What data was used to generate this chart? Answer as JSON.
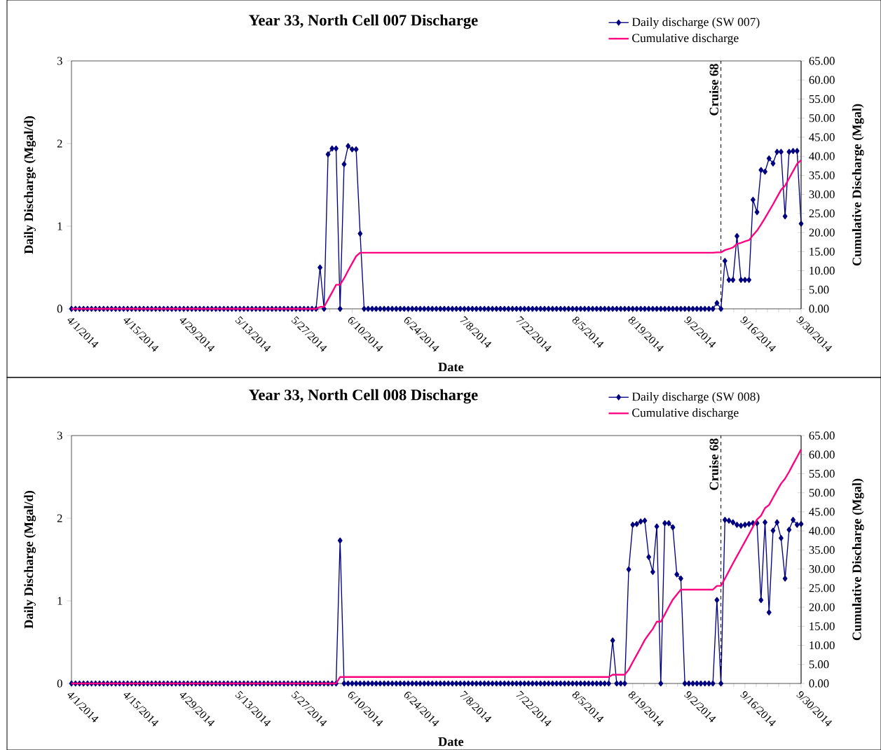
{
  "chart_data": [
    {
      "type": "line",
      "title": "Year 33, North Cell 007 Discharge",
      "xlabel": "Date",
      "ylabel": "Daily Discharge (Mgal/d)",
      "y2label": "Cumulative Discharge (Mgal)",
      "x": [
        "2014-04-01",
        "2014-04-02",
        "2014-04-03",
        "2014-04-04",
        "2014-04-05",
        "2014-04-06",
        "2014-04-07",
        "2014-04-08",
        "2014-04-09",
        "2014-04-10",
        "2014-04-11",
        "2014-04-12",
        "2014-04-13",
        "2014-04-14",
        "2014-04-15",
        "2014-04-16",
        "2014-04-17",
        "2014-04-18",
        "2014-04-19",
        "2014-04-20",
        "2014-04-21",
        "2014-04-22",
        "2014-04-23",
        "2014-04-24",
        "2014-04-25",
        "2014-04-26",
        "2014-04-27",
        "2014-04-28",
        "2014-04-29",
        "2014-04-30",
        "2014-05-01",
        "2014-05-02",
        "2014-05-03",
        "2014-05-04",
        "2014-05-05",
        "2014-05-06",
        "2014-05-07",
        "2014-05-08",
        "2014-05-09",
        "2014-05-10",
        "2014-05-11",
        "2014-05-12",
        "2014-05-13",
        "2014-05-14",
        "2014-05-15",
        "2014-05-16",
        "2014-05-17",
        "2014-05-18",
        "2014-05-19",
        "2014-05-20",
        "2014-05-21",
        "2014-05-22",
        "2014-05-23",
        "2014-05-24",
        "2014-05-25",
        "2014-05-26",
        "2014-05-27",
        "2014-05-28",
        "2014-05-29",
        "2014-05-30",
        "2014-05-31",
        "2014-06-01",
        "2014-06-02",
        "2014-06-03",
        "2014-06-04",
        "2014-06-05",
        "2014-06-06",
        "2014-06-07",
        "2014-06-08",
        "2014-06-09",
        "2014-06-10",
        "2014-06-11",
        "2014-06-12",
        "2014-06-13",
        "2014-06-14",
        "2014-06-15",
        "2014-06-16",
        "2014-06-17",
        "2014-06-18",
        "2014-06-19",
        "2014-06-20",
        "2014-06-21",
        "2014-06-22",
        "2014-06-23",
        "2014-06-24",
        "2014-06-25",
        "2014-06-26",
        "2014-06-27",
        "2014-06-28",
        "2014-06-29",
        "2014-06-30",
        "2014-07-01",
        "2014-07-02",
        "2014-07-03",
        "2014-07-04",
        "2014-07-05",
        "2014-07-06",
        "2014-07-07",
        "2014-07-08",
        "2014-07-09",
        "2014-07-10",
        "2014-07-11",
        "2014-07-12",
        "2014-07-13",
        "2014-07-14",
        "2014-07-15",
        "2014-07-16",
        "2014-07-17",
        "2014-07-18",
        "2014-07-19",
        "2014-07-20",
        "2014-07-21",
        "2014-07-22",
        "2014-07-23",
        "2014-07-24",
        "2014-07-25",
        "2014-07-26",
        "2014-07-27",
        "2014-07-28",
        "2014-07-29",
        "2014-07-30",
        "2014-07-31",
        "2014-08-01",
        "2014-08-02",
        "2014-08-03",
        "2014-08-04",
        "2014-08-05",
        "2014-08-06",
        "2014-08-07",
        "2014-08-08",
        "2014-08-09",
        "2014-08-10",
        "2014-08-11",
        "2014-08-12",
        "2014-08-13",
        "2014-08-14",
        "2014-08-15",
        "2014-08-16",
        "2014-08-17",
        "2014-08-18",
        "2014-08-19",
        "2014-08-20",
        "2014-08-21",
        "2014-08-22",
        "2014-08-23",
        "2014-08-24",
        "2014-08-25",
        "2014-08-26",
        "2014-08-27",
        "2014-08-28",
        "2014-08-29",
        "2014-08-30",
        "2014-08-31",
        "2014-09-01",
        "2014-09-02",
        "2014-09-03",
        "2014-09-04",
        "2014-09-05",
        "2014-09-06",
        "2014-09-07",
        "2014-09-08",
        "2014-09-09",
        "2014-09-10",
        "2014-09-11",
        "2014-09-12",
        "2014-09-13",
        "2014-09-14",
        "2014-09-15",
        "2014-09-16",
        "2014-09-17",
        "2014-09-18",
        "2014-09-19",
        "2014-09-20",
        "2014-09-21",
        "2014-09-22",
        "2014-09-23",
        "2014-09-24",
        "2014-09-25",
        "2014-09-26",
        "2014-09-27",
        "2014-09-28",
        "2014-09-29",
        "2014-09-30"
      ],
      "series": [
        {
          "name": "Daily discharge (SW 007)",
          "color": "#000080",
          "marker": "diamond",
          "values": [
            0,
            0,
            0,
            0,
            0,
            0,
            0,
            0,
            0,
            0,
            0,
            0,
            0,
            0,
            0,
            0,
            0,
            0,
            0,
            0,
            0,
            0,
            0,
            0,
            0,
            0,
            0,
            0,
            0,
            0,
            0,
            0,
            0,
            0,
            0,
            0,
            0,
            0,
            0,
            0,
            0,
            0,
            0,
            0,
            0,
            0,
            0,
            0,
            0,
            0,
            0,
            0,
            0,
            0,
            0,
            0,
            0,
            0,
            0,
            0,
            0,
            0,
            0.5,
            0,
            1.87,
            1.94,
            1.94,
            0,
            1.75,
            1.97,
            1.93,
            1.93,
            0.91,
            0,
            0,
            0,
            0,
            0,
            0,
            0,
            0,
            0,
            0,
            0,
            0,
            0,
            0,
            0,
            0,
            0,
            0,
            0,
            0,
            0,
            0,
            0,
            0,
            0,
            0,
            0,
            0,
            0,
            0,
            0,
            0,
            0,
            0,
            0,
            0,
            0,
            0,
            0,
            0,
            0,
            0,
            0,
            0,
            0,
            0,
            0,
            0,
            0,
            0,
            0,
            0,
            0,
            0,
            0,
            0,
            0,
            0,
            0,
            0,
            0,
            0,
            0,
            0,
            0,
            0,
            0,
            0,
            0,
            0,
            0,
            0,
            0,
            0,
            0,
            0,
            0,
            0,
            0,
            0,
            0,
            0,
            0,
            0,
            0,
            0,
            0,
            0,
            0.07,
            0,
            0.58,
            0.35,
            0.35,
            0.88,
            0.35,
            0.35,
            0.35,
            1.32,
            1.17,
            1.68,
            1.66,
            1.82,
            1.76,
            1.9,
            1.9,
            1.12,
            1.9,
            1.91,
            1.91,
            1.03
          ]
        },
        {
          "name": "Cumulative discharge",
          "color": "#ff0080",
          "marker": "none",
          "axis": "y2",
          "x": [
            "2014-04-01",
            "2014-06-01",
            "2014-06-02",
            "2014-06-03",
            "2014-06-04",
            "2014-06-05",
            "2014-06-06",
            "2014-06-07",
            "2014-06-08",
            "2014-06-09",
            "2014-06-10",
            "2014-06-11",
            "2014-06-12",
            "2014-09-08",
            "2014-09-09",
            "2014-09-10",
            "2014-09-11",
            "2014-09-12",
            "2014-09-13",
            "2014-09-14",
            "2014-09-15",
            "2014-09-16",
            "2014-09-17",
            "2014-09-18",
            "2014-09-19",
            "2014-09-20",
            "2014-09-21",
            "2014-09-22",
            "2014-09-23",
            "2014-09-24",
            "2014-09-25",
            "2014-09-26",
            "2014-09-27",
            "2014-09-28",
            "2014-09-29",
            "2014-09-30"
          ],
          "values": [
            0,
            0,
            0.5,
            0.5,
            2.4,
            4.3,
            6.3,
            6.3,
            8.0,
            10.0,
            11.9,
            13.8,
            14.7,
            14.7,
            14.8,
            14.8,
            15.4,
            15.7,
            16.1,
            17.0,
            17.3,
            17.7,
            18.0,
            19.3,
            20.5,
            22.1,
            23.8,
            25.6,
            27.4,
            29.3,
            31.2,
            32.3,
            34.2,
            36.1,
            38.0,
            39.0
          ]
        }
      ],
      "xlim": [
        "2014-04-01",
        "2014-09-30"
      ],
      "xticks": [
        {
          "value": "2014-04-01",
          "label": "4/1/2014"
        },
        {
          "value": "2014-04-15",
          "label": "4/15/2014"
        },
        {
          "value": "2014-04-29",
          "label": "4/29/2014"
        },
        {
          "value": "2014-05-13",
          "label": "5/13/2014"
        },
        {
          "value": "2014-05-27",
          "label": "5/27/2014"
        },
        {
          "value": "2014-06-10",
          "label": "6/10/2014"
        },
        {
          "value": "2014-06-24",
          "label": "6/24/2014"
        },
        {
          "value": "2014-07-08",
          "label": "7/8/2014"
        },
        {
          "value": "2014-07-22",
          "label": "7/22/2014"
        },
        {
          "value": "2014-08-05",
          "label": "8/5/2014"
        },
        {
          "value": "2014-08-19",
          "label": "8/19/2014"
        },
        {
          "value": "2014-09-02",
          "label": "9/2/2014"
        },
        {
          "value": "2014-09-16",
          "label": "9/16/2014"
        },
        {
          "value": "2014-09-30",
          "label": "9/30/2014"
        }
      ],
      "ylim": [
        0,
        3
      ],
      "yticks": [
        0,
        1,
        2,
        3
      ],
      "y2lim": [
        0,
        65
      ],
      "y2ticks": [
        {
          "value": 0,
          "label": "0.00"
        },
        {
          "value": 5,
          "label": "5.00"
        },
        {
          "value": 10,
          "label": "10.00"
        },
        {
          "value": 15,
          "label": "15.00"
        },
        {
          "value": 20,
          "label": "20.00"
        },
        {
          "value": 25,
          "label": "25.00"
        },
        {
          "value": 30,
          "label": "30.00"
        },
        {
          "value": 35,
          "label": "35.00"
        },
        {
          "value": 40,
          "label": "40.00"
        },
        {
          "value": 45,
          "label": "45.00"
        },
        {
          "value": 50,
          "label": "50.00"
        },
        {
          "value": 55,
          "label": "55.00"
        },
        {
          "value": 60,
          "label": "60.00"
        },
        {
          "value": 65,
          "label": "65.00"
        }
      ],
      "ref_lines": [
        {
          "axis": "x",
          "value": "2014-09-10",
          "label": "Cruise 68",
          "color": "#000000",
          "line_style": "dashed"
        }
      ],
      "legend": "top right"
    },
    {
      "type": "line",
      "title": "Year 33, North Cell 008 Discharge",
      "xlabel": "Date",
      "ylabel": "Daily Discharge (Mgal/d)",
      "y2label": "Cumulative Discharge (Mgal)",
      "x": [
        "2014-04-01",
        "2014-04-02",
        "2014-04-03",
        "2014-04-04",
        "2014-04-05",
        "2014-04-06",
        "2014-04-07",
        "2014-04-08",
        "2014-04-09",
        "2014-04-10",
        "2014-04-11",
        "2014-04-12",
        "2014-04-13",
        "2014-04-14",
        "2014-04-15",
        "2014-04-16",
        "2014-04-17",
        "2014-04-18",
        "2014-04-19",
        "2014-04-20",
        "2014-04-21",
        "2014-04-22",
        "2014-04-23",
        "2014-04-24",
        "2014-04-25",
        "2014-04-26",
        "2014-04-27",
        "2014-04-28",
        "2014-04-29",
        "2014-04-30",
        "2014-05-01",
        "2014-05-02",
        "2014-05-03",
        "2014-05-04",
        "2014-05-05",
        "2014-05-06",
        "2014-05-07",
        "2014-05-08",
        "2014-05-09",
        "2014-05-10",
        "2014-05-11",
        "2014-05-12",
        "2014-05-13",
        "2014-05-14",
        "2014-05-15",
        "2014-05-16",
        "2014-05-17",
        "2014-05-18",
        "2014-05-19",
        "2014-05-20",
        "2014-05-21",
        "2014-05-22",
        "2014-05-23",
        "2014-05-24",
        "2014-05-25",
        "2014-05-26",
        "2014-05-27",
        "2014-05-28",
        "2014-05-29",
        "2014-05-30",
        "2014-05-31",
        "2014-06-01",
        "2014-06-02",
        "2014-06-03",
        "2014-06-04",
        "2014-06-05",
        "2014-06-06",
        "2014-06-07",
        "2014-06-08",
        "2014-06-09",
        "2014-06-10",
        "2014-06-11",
        "2014-06-12",
        "2014-06-13",
        "2014-06-14",
        "2014-06-15",
        "2014-06-16",
        "2014-06-17",
        "2014-06-18",
        "2014-06-19",
        "2014-06-20",
        "2014-06-21",
        "2014-06-22",
        "2014-06-23",
        "2014-06-24",
        "2014-06-25",
        "2014-06-26",
        "2014-06-27",
        "2014-06-28",
        "2014-06-29",
        "2014-06-30",
        "2014-07-01",
        "2014-07-02",
        "2014-07-03",
        "2014-07-04",
        "2014-07-05",
        "2014-07-06",
        "2014-07-07",
        "2014-07-08",
        "2014-07-09",
        "2014-07-10",
        "2014-07-11",
        "2014-07-12",
        "2014-07-13",
        "2014-07-14",
        "2014-07-15",
        "2014-07-16",
        "2014-07-17",
        "2014-07-18",
        "2014-07-19",
        "2014-07-20",
        "2014-07-21",
        "2014-07-22",
        "2014-07-23",
        "2014-07-24",
        "2014-07-25",
        "2014-07-26",
        "2014-07-27",
        "2014-07-28",
        "2014-07-29",
        "2014-07-30",
        "2014-07-31",
        "2014-08-01",
        "2014-08-02",
        "2014-08-03",
        "2014-08-04",
        "2014-08-05",
        "2014-08-06",
        "2014-08-07",
        "2014-08-08",
        "2014-08-09",
        "2014-08-10",
        "2014-08-11",
        "2014-08-12",
        "2014-08-13",
        "2014-08-14",
        "2014-08-15",
        "2014-08-16",
        "2014-08-17",
        "2014-08-18",
        "2014-08-19",
        "2014-08-20",
        "2014-08-21",
        "2014-08-22",
        "2014-08-23",
        "2014-08-24",
        "2014-08-25",
        "2014-08-26",
        "2014-08-27",
        "2014-08-28",
        "2014-08-29",
        "2014-08-30",
        "2014-08-31",
        "2014-09-01",
        "2014-09-02",
        "2014-09-03",
        "2014-09-04",
        "2014-09-05",
        "2014-09-06",
        "2014-09-07",
        "2014-09-08",
        "2014-09-09",
        "2014-09-10",
        "2014-09-11",
        "2014-09-12",
        "2014-09-13",
        "2014-09-14",
        "2014-09-15",
        "2014-09-16",
        "2014-09-17",
        "2014-09-18",
        "2014-09-19",
        "2014-09-20",
        "2014-09-21",
        "2014-09-22",
        "2014-09-23",
        "2014-09-24",
        "2014-09-25",
        "2014-09-26",
        "2014-09-27",
        "2014-09-28",
        "2014-09-29",
        "2014-09-30"
      ],
      "series": [
        {
          "name": "Daily discharge (SW 008)",
          "color": "#000080",
          "marker": "diamond",
          "values": [
            0,
            0,
            0,
            0,
            0,
            0,
            0,
            0,
            0,
            0,
            0,
            0,
            0,
            0,
            0,
            0,
            0,
            0,
            0,
            0,
            0,
            0,
            0,
            0,
            0,
            0,
            0,
            0,
            0,
            0,
            0,
            0,
            0,
            0,
            0,
            0,
            0,
            0,
            0,
            0,
            0,
            0,
            0,
            0,
            0,
            0,
            0,
            0,
            0,
            0,
            0,
            0,
            0,
            0,
            0,
            0,
            0,
            0,
            0,
            0,
            0,
            0,
            0,
            0,
            0,
            0,
            0,
            1.73,
            0,
            0,
            0,
            0,
            0,
            0,
            0,
            0,
            0,
            0,
            0,
            0,
            0,
            0,
            0,
            0,
            0,
            0,
            0,
            0,
            0,
            0,
            0,
            0,
            0,
            0,
            0,
            0,
            0,
            0,
            0,
            0,
            0,
            0,
            0,
            0,
            0,
            0,
            0,
            0,
            0,
            0,
            0,
            0,
            0,
            0,
            0,
            0,
            0,
            0,
            0,
            0,
            0,
            0,
            0,
            0,
            0,
            0,
            0,
            0,
            0,
            0,
            0,
            0,
            0,
            0,
            0,
            0.52,
            0,
            0,
            0,
            1.38,
            1.92,
            1.93,
            1.96,
            1.97,
            1.53,
            1.35,
            1.9,
            0,
            1.94,
            1.94,
            1.89,
            1.32,
            1.27,
            0,
            0,
            0,
            0,
            0,
            0,
            0,
            0,
            1.01,
            0,
            1.98,
            1.97,
            1.95,
            1.92,
            1.91,
            1.92,
            1.93,
            1.94,
            1.94,
            1.01,
            1.95,
            0.86,
            1.85,
            1.95,
            1.76,
            1.27,
            1.86,
            1.98,
            1.92,
            1.93
          ]
        },
        {
          "name": "Cumulative discharge",
          "color": "#ff0080",
          "marker": "none",
          "axis": "y2",
          "x": [
            "2014-04-01",
            "2014-06-06",
            "2014-06-07",
            "2014-08-13",
            "2014-08-14",
            "2014-08-17",
            "2014-08-18",
            "2014-08-19",
            "2014-08-20",
            "2014-08-21",
            "2014-08-22",
            "2014-08-23",
            "2014-08-24",
            "2014-08-25",
            "2014-08-26",
            "2014-08-27",
            "2014-08-28",
            "2014-08-29",
            "2014-08-30",
            "2014-08-31",
            "2014-09-08",
            "2014-09-09",
            "2014-09-10",
            "2014-09-11",
            "2014-09-12",
            "2014-09-13",
            "2014-09-14",
            "2014-09-15",
            "2014-09-16",
            "2014-09-17",
            "2014-09-18",
            "2014-09-19",
            "2014-09-20",
            "2014-09-21",
            "2014-09-22",
            "2014-09-23",
            "2014-09-24",
            "2014-09-25",
            "2014-09-26",
            "2014-09-27",
            "2014-09-28",
            "2014-09-29",
            "2014-09-30"
          ],
          "values": [
            0,
            0,
            1.7,
            1.7,
            2.3,
            2.3,
            3.6,
            5.6,
            7.5,
            9.4,
            11.4,
            12.9,
            14.3,
            16.2,
            16.2,
            18.1,
            20.1,
            22.0,
            23.3,
            24.6,
            24.6,
            25.6,
            25.6,
            27.5,
            29.5,
            31.5,
            33.4,
            35.3,
            37.2,
            39.1,
            41.1,
            43.0,
            44.0,
            46.0,
            46.8,
            48.7,
            50.6,
            52.4,
            53.7,
            55.5,
            57.5,
            59.4,
            61.4
          ]
        }
      ],
      "xlim": [
        "2014-04-01",
        "2014-09-30"
      ],
      "xticks": [
        {
          "value": "2014-04-01",
          "label": "4/1/2014"
        },
        {
          "value": "2014-04-15",
          "label": "4/15/2014"
        },
        {
          "value": "2014-04-29",
          "label": "4/29/2014"
        },
        {
          "value": "2014-05-13",
          "label": "5/13/2014"
        },
        {
          "value": "2014-05-27",
          "label": "5/27/2014"
        },
        {
          "value": "2014-06-10",
          "label": "6/10/2014"
        },
        {
          "value": "2014-06-24",
          "label": "6/24/2014"
        },
        {
          "value": "2014-07-08",
          "label": "7/8/2014"
        },
        {
          "value": "2014-07-22",
          "label": "7/22/2014"
        },
        {
          "value": "2014-08-05",
          "label": "8/5/2014"
        },
        {
          "value": "2014-08-19",
          "label": "8/19/2014"
        },
        {
          "value": "2014-09-02",
          "label": "9/2/2014"
        },
        {
          "value": "2014-09-16",
          "label": "9/16/2014"
        },
        {
          "value": "2014-09-30",
          "label": "9/30/2014"
        }
      ],
      "ylim": [
        0,
        3
      ],
      "yticks": [
        0,
        1,
        2,
        3
      ],
      "y2lim": [
        0,
        65
      ],
      "y2ticks": [
        {
          "value": 0,
          "label": "0.00"
        },
        {
          "value": 5,
          "label": "5.00"
        },
        {
          "value": 10,
          "label": "10.00"
        },
        {
          "value": 15,
          "label": "15.00"
        },
        {
          "value": 20,
          "label": "20.00"
        },
        {
          "value": 25,
          "label": "25.00"
        },
        {
          "value": 30,
          "label": "30.00"
        },
        {
          "value": 35,
          "label": "35.00"
        },
        {
          "value": 40,
          "label": "40.00"
        },
        {
          "value": 45,
          "label": "45.00"
        },
        {
          "value": 50,
          "label": "50.00"
        },
        {
          "value": 55,
          "label": "55.00"
        },
        {
          "value": 60,
          "label": "60.00"
        },
        {
          "value": 65,
          "label": "65.00"
        }
      ],
      "ref_lines": [
        {
          "axis": "x",
          "value": "2014-09-10",
          "label": "Cruise 68",
          "color": "#000000",
          "line_style": "dashed"
        }
      ],
      "legend": "top right"
    }
  ]
}
